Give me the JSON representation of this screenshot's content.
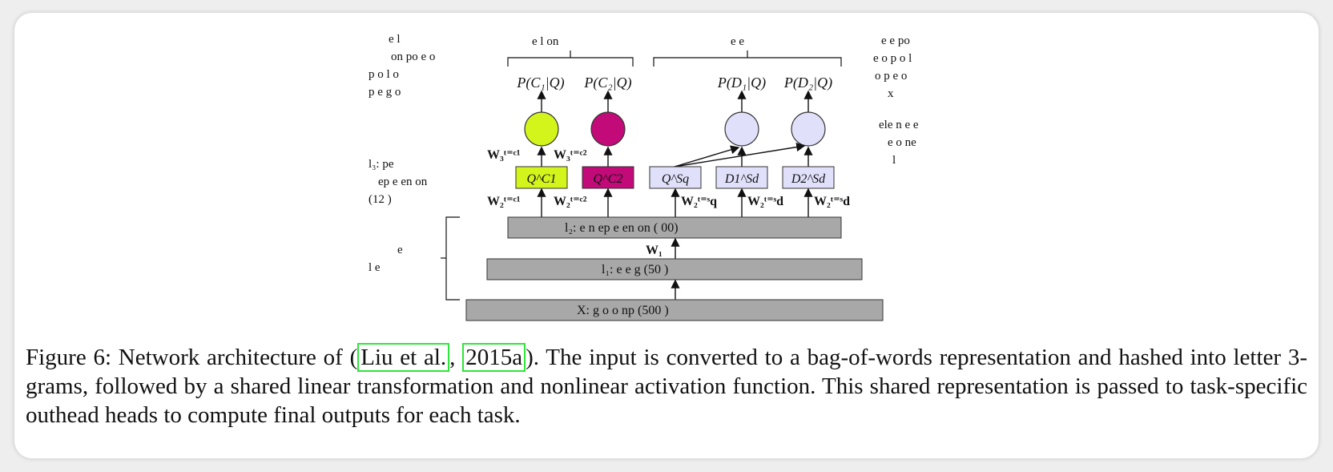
{
  "diagram": {
    "side_left_top": [
      "e    l",
      "on po   e   o",
      "p o      l        o",
      "p     e          g   o"
    ],
    "side_left_mid": [
      "l₃:              pe",
      "ep e en     on",
      "(12  )"
    ],
    "side_left_bottom": [
      "e",
      "l    e"
    ],
    "side_right_top": [
      "e      e          po",
      "e  o  p o      l",
      "o   p     e          o",
      "x"
    ],
    "side_right_mid": [
      "ele    n  e    e",
      "e        o  ne",
      "l"
    ],
    "bracket_mid_label": "e       l              on",
    "bracket_right_label": "e      e",
    "outputs": [
      "P(C₁|Q)",
      "P(C₂|Q)",
      "P(D₁|Q)",
      "P(D₂|Q)"
    ],
    "w3_labels": [
      "W₃ᵗ⁼ᶜ¹",
      "W₃ᵗ⁼ᶜ²"
    ],
    "task_boxes": [
      "Q^C1",
      "Q^C2",
      "Q^Sq",
      "D1^Sd",
      "D2^Sd"
    ],
    "w2_labels": [
      "W₂ᵗ⁼ᶜ¹",
      "W₂ᵗ⁼ᶜ²",
      "W₂ᵗ⁼ˢq",
      "W₂ᵗ⁼ˢd",
      "W₂ᵗ⁼ˢd"
    ],
    "w1_label": "W₁",
    "layer_l2": "l₂:    e      n         ep  e  en       on  (  00)",
    "layer_l1": "l₁:    e    e     g          (50   )",
    "layer_x": "X:        g o       o          np     (500   )",
    "colors": {
      "c1": "#d4f51c",
      "c2": "#c20a78",
      "ranking": "#e0e0fa",
      "layer": "#a8a8a8"
    }
  },
  "caption": {
    "prefix": "Figure 6: Network architecture of (",
    "cite_1": "Liu et al.",
    "sep": ", ",
    "cite_2": "2015a",
    "suffix": "). The input is converted to a bag-of-words representation and hashed into letter 3-grams, followed by a shared linear transformation and nonlinear activation function. This shared representation is passed to task-specific outhead heads to compute final outputs for each task."
  }
}
